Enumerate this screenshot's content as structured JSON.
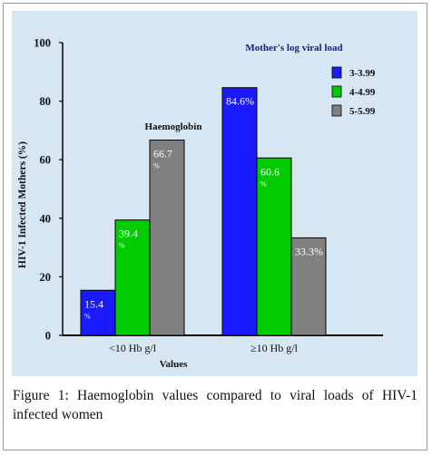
{
  "chart_data": {
    "type": "bar",
    "categories": [
      "<10 Hb g/l",
      "≥10 Hb g/l"
    ],
    "series": [
      {
        "name": "3-3.99",
        "values": [
          15.4,
          84.6
        ],
        "labels": [
          "15.4",
          "84.6%"
        ],
        "color": "#1a1aff"
      },
      {
        "name": "4-4.99",
        "values": [
          39.4,
          60.6
        ],
        "labels": [
          "39.4",
          "60.6"
        ],
        "color": "#00cc00"
      },
      {
        "name": "5-5.99",
        "values": [
          66.7,
          33.3
        ],
        "labels": [
          "66.7",
          "33.3%"
        ],
        "color": "#808080"
      }
    ],
    "label_suffix_line": "%",
    "title": "",
    "xlabel": "Haemoglobin Values",
    "ylabel": "HIV-1 Infected Mothers (%)",
    "yticks": [
      0,
      20,
      40,
      60,
      80,
      100
    ],
    "ylim": [
      0,
      100
    ],
    "legend": {
      "title": "Mother's log viral load",
      "position": "top-right"
    },
    "grid": false,
    "panel_color": "#d7e6f3"
  },
  "caption": "Figure 1: Haemoglobin values compared to viral loads of HIV-1 infected women"
}
